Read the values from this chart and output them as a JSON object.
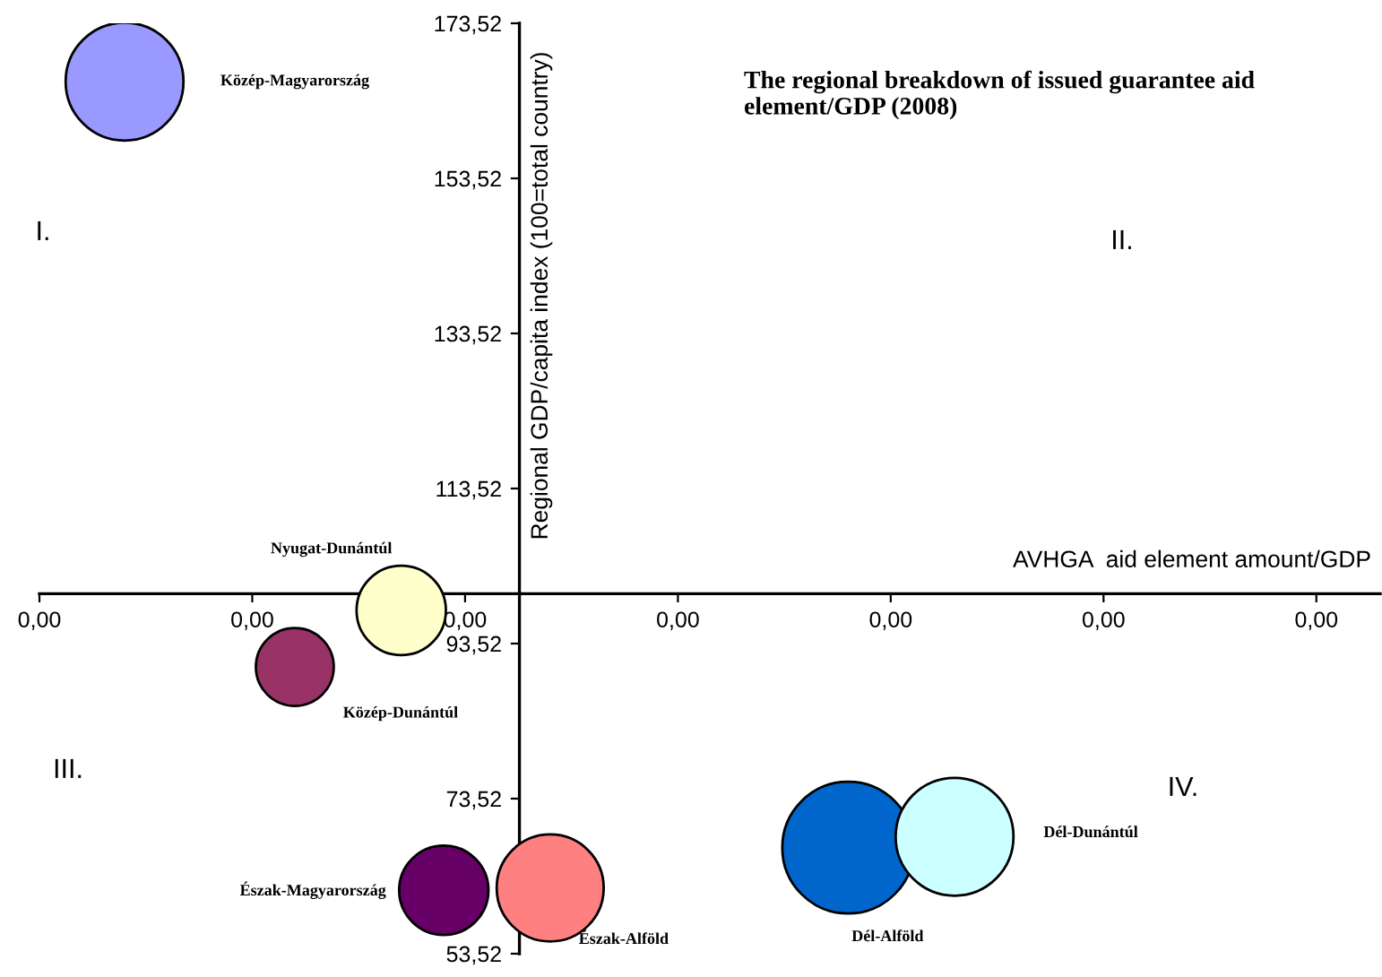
{
  "chart_data": {
    "type": "bubble",
    "title": "The regional breakdown of issued guarantee aid element/GDP (2008)",
    "xlabel": "AVHGA  aid element amount/GDP",
    "ylabel": "Regional GDP/capita index (100=total country)",
    "annotations": [
      "I.",
      "II.",
      "III.",
      "IV."
    ],
    "series": [
      {
        "name": "Közép-Magyarország",
        "color": "#9999ff",
        "x": [
          0.0002
        ],
        "values": [
          166
        ],
        "sizes": [
          0.8
        ]
      },
      {
        "name": "Nyugat-Dunántúl",
        "color": "#ffffcc",
        "x": [
          0.00085
        ],
        "values": [
          97.8
        ],
        "sizes": [
          0.46
        ]
      },
      {
        "name": "Közép-Dunántúl",
        "color": "#993366",
        "x": [
          0.0006
        ],
        "values": [
          90.5
        ],
        "sizes": [
          0.35
        ]
      },
      {
        "name": "Észak-Magyarország",
        "color": "#660066",
        "x": [
          0.00095
        ],
        "values": [
          61.7
        ],
        "sizes": [
          0.46
        ]
      },
      {
        "name": "Észak-Alföld",
        "color": "#ff8080",
        "x": [
          0.0012
        ],
        "values": [
          62
        ],
        "sizes": [
          0.66
        ]
      },
      {
        "name": "Dél-Alföld",
        "color": "#0066cc",
        "x": [
          0.0019
        ],
        "values": [
          67.2
        ],
        "sizes": [
          1
        ]
      },
      {
        "name": "Dél-Dunántúl",
        "color": "#ccffff",
        "x": [
          0.00215
        ],
        "values": [
          68.6
        ],
        "sizes": [
          0.8
        ]
      }
    ],
    "xlim": [
      0,
      0.00315
    ],
    "ylim": [
      53.52,
      173.52
    ],
    "xticks": [
      {
        "value": 0,
        "label": "0,00"
      },
      {
        "value": 0.0005,
        "label": "0,00"
      },
      {
        "value": 0.001,
        "label": "0,00"
      },
      {
        "value": 0.0015,
        "label": "0,00"
      },
      {
        "value": 0.002,
        "label": "0,00"
      },
      {
        "value": 0.0025,
        "label": "0,00"
      },
      {
        "value": 0.003,
        "label": "0,00"
      }
    ],
    "yticks": [
      {
        "value": 53.52,
        "label": "53,52"
      },
      {
        "value": 73.52,
        "label": "73,52"
      },
      {
        "value": 93.52,
        "label": "93,52"
      },
      {
        "value": 113.52,
        "label": "113,52"
      },
      {
        "value": 133.52,
        "label": "133,52"
      },
      {
        "value": 153.52,
        "label": "153,52"
      },
      {
        "value": 173.52,
        "label": "173,52"
      }
    ],
    "grid": false,
    "legend": false
  }
}
